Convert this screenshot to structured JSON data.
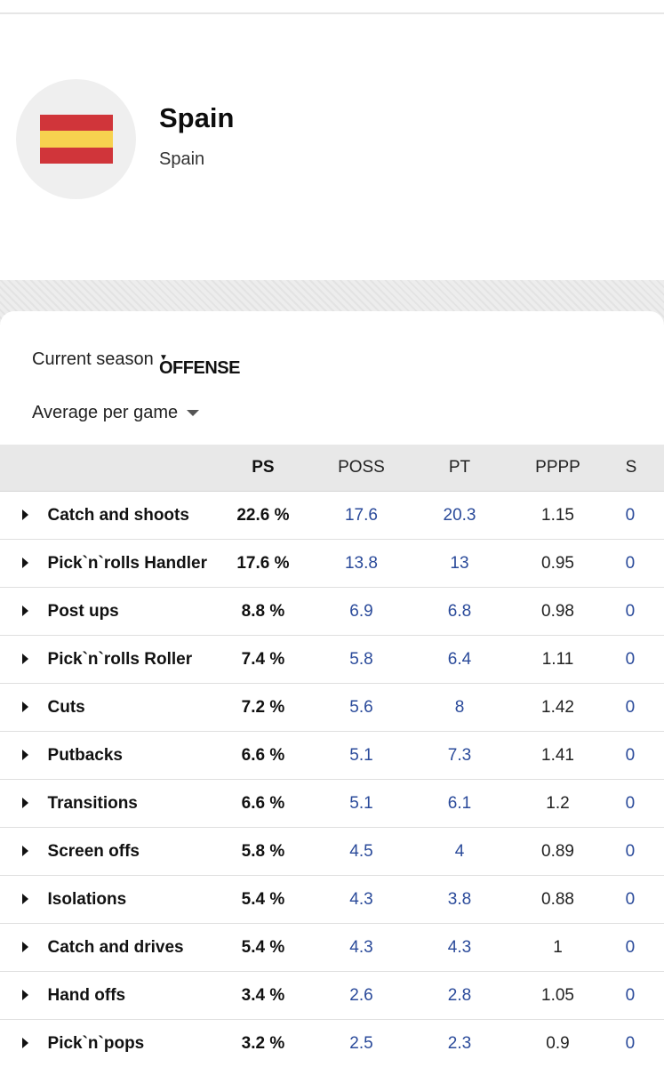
{
  "team": {
    "name": "Spain",
    "subtitle": "Spain",
    "flag_colors": [
      "#d0353a",
      "#f7d24f",
      "#d0353a"
    ]
  },
  "filters": {
    "season": "Current season",
    "category": "OFFENSE",
    "mode": "Average per game"
  },
  "table": {
    "headers": [
      "PS",
      "POSS",
      "PT",
      "PPPP",
      "S"
    ],
    "rows": [
      {
        "name": "Catch and shoots",
        "ps": "22.6 %",
        "poss": "17.6",
        "pt": "20.3",
        "pppp": "1.15",
        "s": "0"
      },
      {
        "name": "Pick`n`rolls Handler",
        "ps": "17.6 %",
        "poss": "13.8",
        "pt": "13",
        "pppp": "0.95",
        "s": "0"
      },
      {
        "name": "Post ups",
        "ps": "8.8 %",
        "poss": "6.9",
        "pt": "6.8",
        "pppp": "0.98",
        "s": "0"
      },
      {
        "name": "Pick`n`rolls Roller",
        "ps": "7.4 %",
        "poss": "5.8",
        "pt": "6.4",
        "pppp": "1.11",
        "s": "0"
      },
      {
        "name": "Cuts",
        "ps": "7.2 %",
        "poss": "5.6",
        "pt": "8",
        "pppp": "1.42",
        "s": "0"
      },
      {
        "name": "Putbacks",
        "ps": "6.6 %",
        "poss": "5.1",
        "pt": "7.3",
        "pppp": "1.41",
        "s": "0"
      },
      {
        "name": "Transitions",
        "ps": "6.6 %",
        "poss": "5.1",
        "pt": "6.1",
        "pppp": "1.2",
        "s": "0"
      },
      {
        "name": "Screen offs",
        "ps": "5.8 %",
        "poss": "4.5",
        "pt": "4",
        "pppp": "0.89",
        "s": "0"
      },
      {
        "name": "Isolations",
        "ps": "5.4 %",
        "poss": "4.3",
        "pt": "3.8",
        "pppp": "0.88",
        "s": "0"
      },
      {
        "name": "Catch and drives",
        "ps": "5.4 %",
        "poss": "4.3",
        "pt": "4.3",
        "pppp": "1",
        "s": "0"
      },
      {
        "name": "Hand offs",
        "ps": "3.4 %",
        "poss": "2.6",
        "pt": "2.8",
        "pppp": "1.05",
        "s": "0"
      },
      {
        "name": "Pick`n`pops",
        "ps": "3.2 %",
        "poss": "2.5",
        "pt": "2.3",
        "pppp": "0.9",
        "s": "0"
      }
    ]
  }
}
